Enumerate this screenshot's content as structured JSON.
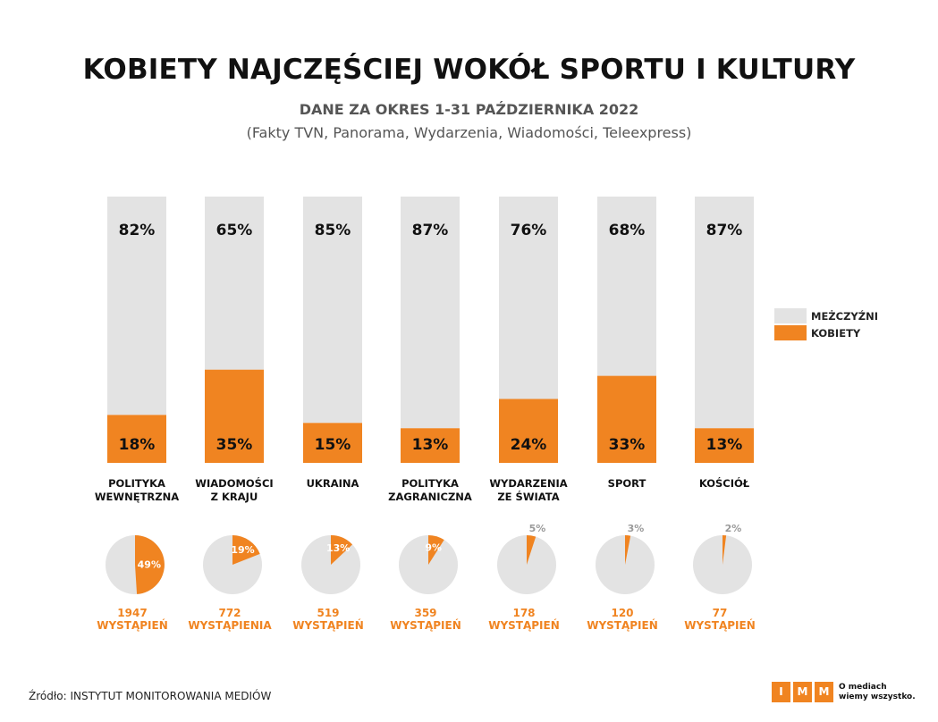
{
  "header": {
    "title": "KOBIETY NAJCZĘŚCIEJ WOKÓŁ SPORTU I KULTURY",
    "subtitle": "DANE ZA OKRES 1-31 PAŹDZIERNIKA 2022",
    "programs": "(Fakty TVN, Panorama, Wydarzenia, Wiadomości, Teleexpress)"
  },
  "colors": {
    "men": "#e3e3e3",
    "women": "#f08421",
    "text": "#111111",
    "orange_text": "#f08421",
    "small_label_gray": "#9a9a9a"
  },
  "legend": {
    "men_label": "MEŻCZYŹNI",
    "women_label": "KOBIETY"
  },
  "chart_data": {
    "type": "bar",
    "stacked": true,
    "ylim": [
      0,
      100
    ],
    "categories": [
      [
        "POLITYKA",
        "WEWNĘTRZNA"
      ],
      [
        "WIADOMOŚCI",
        "Z KRAJU"
      ],
      [
        "UKRAINA"
      ],
      [
        "POLITYKA",
        "ZAGRANICZNA"
      ],
      [
        "WYDARZENIA",
        "ZE ŚWIATA"
      ],
      [
        "SPORT"
      ],
      [
        "KOŚCIÓŁ"
      ]
    ],
    "series": [
      {
        "name": "KOBIETY",
        "values": [
          18,
          35,
          15,
          13,
          24,
          33,
          13
        ],
        "labels": [
          "18%",
          "35%",
          "15%",
          "13%",
          "24%",
          "33%",
          "13%"
        ]
      },
      {
        "name": "MEŻCZYŹNI",
        "values": [
          82,
          65,
          85,
          87,
          76,
          68,
          87
        ],
        "labels": [
          "82%",
          "65%",
          "85%",
          "87%",
          "76%",
          "68%",
          "87%"
        ]
      }
    ],
    "pies": {
      "values": [
        49,
        19,
        13,
        9,
        5,
        3,
        2
      ],
      "labels": [
        "49%",
        "19%",
        "13%",
        "9%",
        "5%",
        "3%",
        "2%"
      ],
      "label_inside": [
        true,
        true,
        true,
        true,
        false,
        false,
        false
      ]
    },
    "appearances": [
      [
        "1947",
        "WYSTĄPIEŃ"
      ],
      [
        "772",
        "WYSTĄPIENIA"
      ],
      [
        "519",
        "WYSTĄPIEŃ"
      ],
      [
        "359",
        "WYSTĄPIEŃ"
      ],
      [
        "178",
        "WYSTĄPIEŃ"
      ],
      [
        "120",
        "WYSTĄPIEŃ"
      ],
      [
        "77",
        "WYSTĄPIEŃ"
      ]
    ]
  },
  "footer": {
    "source": "Źródło: INSTYTUT MONITOROWANIA MEDIÓW",
    "logo_letters": [
      "I",
      "M",
      "M"
    ],
    "logo_tagline_1": "O mediach",
    "logo_tagline_2": "wiemy wszystko."
  }
}
